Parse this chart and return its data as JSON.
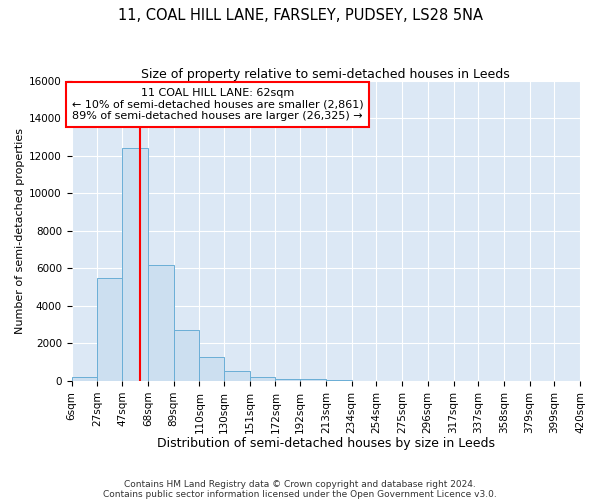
{
  "title1": "11, COAL HILL LANE, FARSLEY, PUDSEY, LS28 5NA",
  "title2": "Size of property relative to semi-detached houses in Leeds",
  "xlabel": "Distribution of semi-detached houses by size in Leeds",
  "ylabel": "Number of semi-detached properties",
  "footnote1": "Contains HM Land Registry data © Crown copyright and database right 2024.",
  "footnote2": "Contains public sector information licensed under the Open Government Licence v3.0.",
  "bar_left_edges": [
    6,
    27,
    47,
    68,
    89,
    110,
    130,
    151,
    172,
    192,
    213,
    234,
    254,
    275,
    296,
    317,
    337,
    358,
    379,
    399,
    420
  ],
  "bar_heights": [
    200,
    5500,
    12400,
    6200,
    2700,
    1300,
    550,
    200,
    120,
    80,
    50,
    0,
    0,
    0,
    0,
    0,
    0,
    0,
    0,
    0,
    0
  ],
  "bar_color": "#ccdff0",
  "bar_edge_color": "#6aaed6",
  "property_line_x": 62,
  "annotation_line1": "11 COAL HILL LANE: 62sqm",
  "annotation_line2": "← 10% of semi-detached houses are smaller (2,861)",
  "annotation_line3": "89% of semi-detached houses are larger (26,325) →",
  "annotation_box_color": "white",
  "annotation_box_edge_color": "red",
  "vline_color": "red",
  "ylim": [
    0,
    16000
  ],
  "xlim": [
    6,
    420
  ],
  "yticks": [
    0,
    2000,
    4000,
    6000,
    8000,
    10000,
    12000,
    14000,
    16000
  ],
  "xtick_labels": [
    "6sqm",
    "27sqm",
    "47sqm",
    "68sqm",
    "89sqm",
    "110sqm",
    "130sqm",
    "151sqm",
    "172sqm",
    "192sqm",
    "213sqm",
    "234sqm",
    "254sqm",
    "275sqm",
    "296sqm",
    "317sqm",
    "337sqm",
    "358sqm",
    "379sqm",
    "399sqm",
    "420sqm"
  ],
  "bg_color": "#dce8f5",
  "grid_color": "white",
  "title1_fontsize": 10.5,
  "title2_fontsize": 9,
  "xlabel_fontsize": 9,
  "ylabel_fontsize": 8,
  "tick_fontsize": 7.5,
  "annotation_fontsize": 8,
  "footnote_fontsize": 6.5
}
